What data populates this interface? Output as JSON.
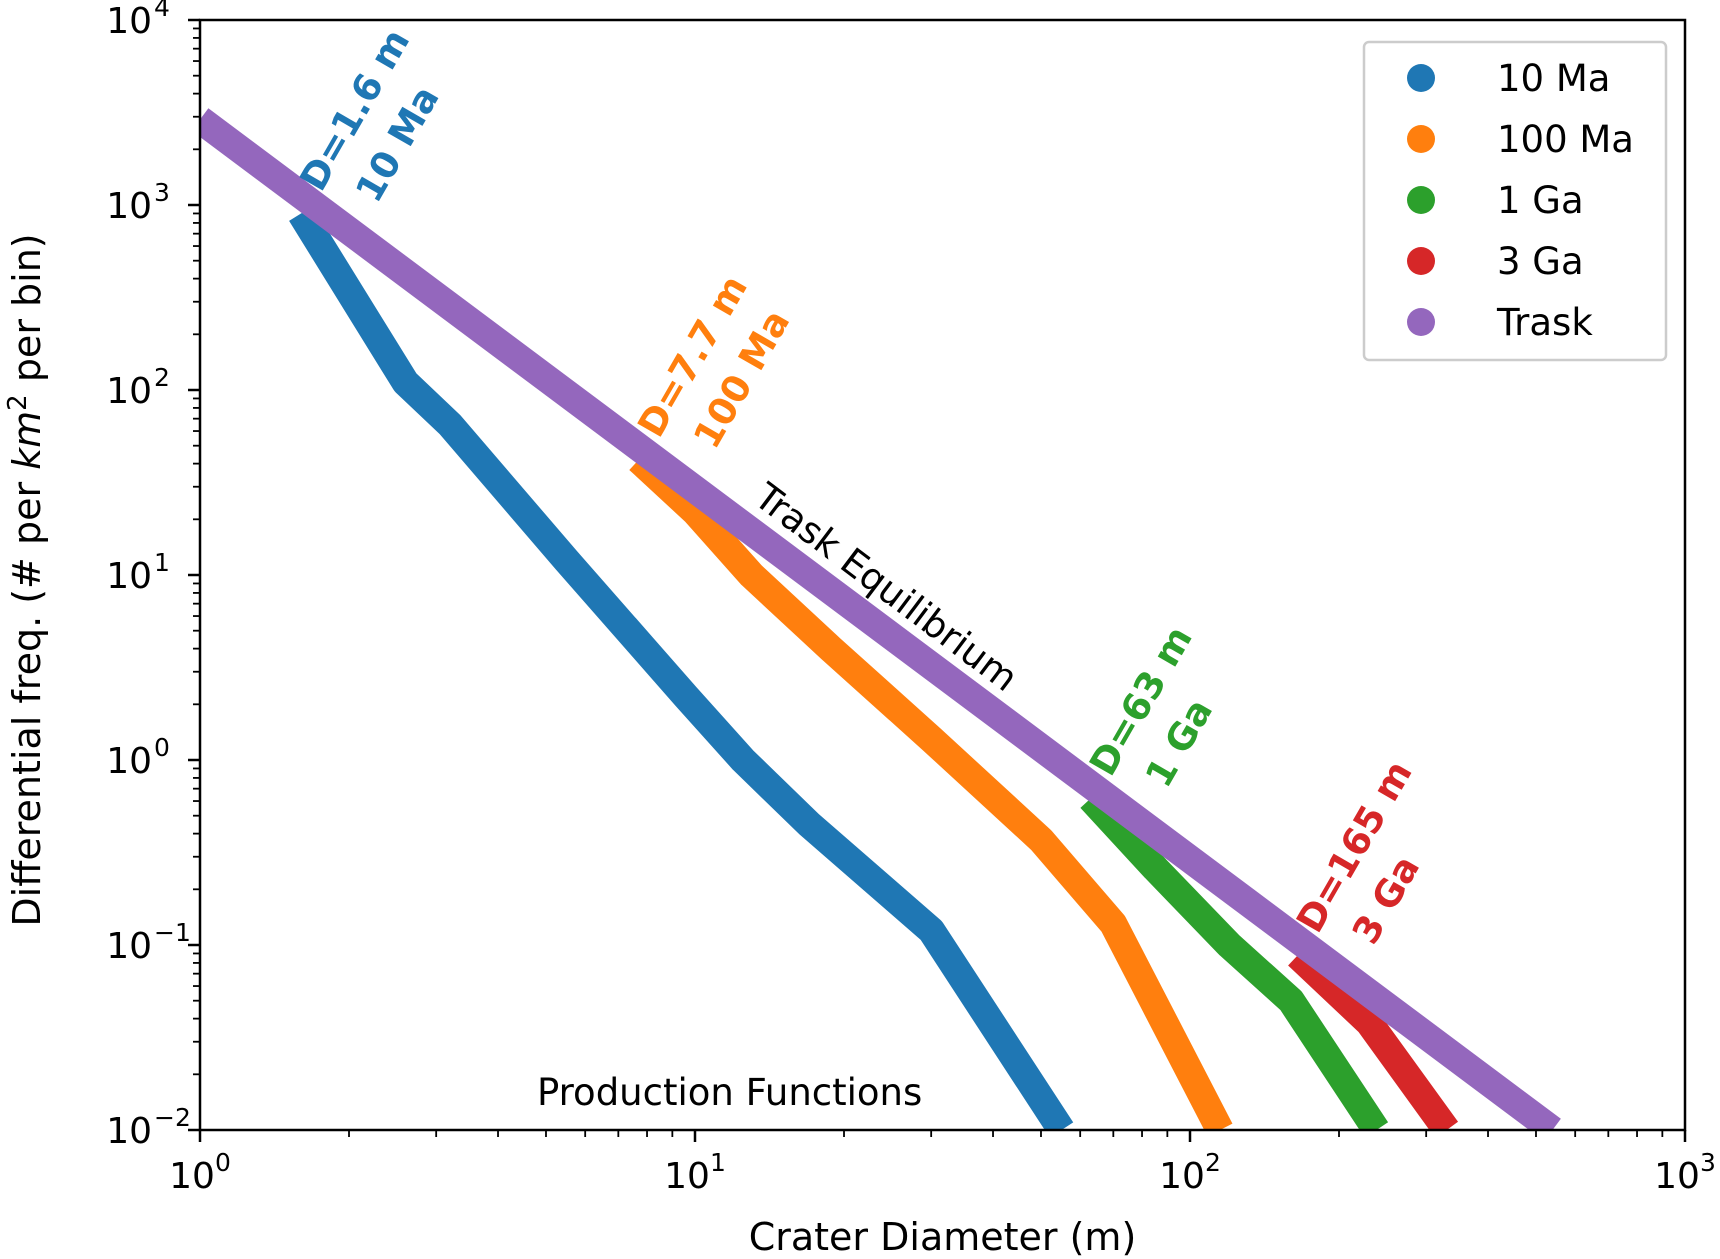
{
  "chart_data": {
    "type": "line",
    "xlabel": "Crater Diameter (m)",
    "ylabel": "Differential freq. (# per km² per bin)",
    "ylabel_parts": {
      "pre": "Differential freq. (# per ",
      "italic": "km",
      "sup": "2",
      "post": " per bin)"
    },
    "xscale": "log",
    "yscale": "log",
    "xlim": [
      1,
      1000
    ],
    "ylim": [
      0.01,
      10000
    ],
    "x_ticks": [
      {
        "value": 1,
        "base": "10",
        "exp": "0"
      },
      {
        "value": 10,
        "base": "10",
        "exp": "1"
      },
      {
        "value": 100,
        "base": "10",
        "exp": "2"
      },
      {
        "value": 1000,
        "base": "10",
        "exp": "3"
      }
    ],
    "y_ticks": [
      {
        "value": 0.01,
        "base": "10",
        "exp": "−2"
      },
      {
        "value": 0.1,
        "base": "10",
        "exp": "−1"
      },
      {
        "value": 1,
        "base": "10",
        "exp": "0"
      },
      {
        "value": 10,
        "base": "10",
        "exp": "1"
      },
      {
        "value": 100,
        "base": "10",
        "exp": "2"
      },
      {
        "value": 1000,
        "base": "10",
        "exp": "3"
      },
      {
        "value": 10000,
        "base": "10",
        "exp": "4"
      }
    ],
    "legend_position": "top-right",
    "grid": false,
    "series": [
      {
        "name": "10 Ma",
        "color": "#1f77b4",
        "points": [
          [
            1.6,
            900
          ],
          [
            2.6,
            110
          ],
          [
            3.2,
            65
          ],
          [
            5.5,
            12
          ],
          [
            9.6,
            2.2
          ],
          [
            12.5,
            1.0
          ],
          [
            17,
            0.45
          ],
          [
            30,
            0.12
          ],
          [
            55,
            0.01
          ]
        ]
      },
      {
        "name": "100 Ma",
        "color": "#ff7f0e",
        "points": [
          [
            7.7,
            42
          ],
          [
            10,
            22
          ],
          [
            13,
            10
          ],
          [
            18.8,
            4.0
          ],
          [
            30,
            1.3
          ],
          [
            50,
            0.37
          ],
          [
            70,
            0.13
          ],
          [
            115,
            0.01
          ]
        ]
      },
      {
        "name": "1 Ga",
        "color": "#2ca02c",
        "points": [
          [
            63,
            0.62
          ],
          [
            85,
            0.26
          ],
          [
            120,
            0.1
          ],
          [
            160,
            0.05
          ],
          [
            238,
            0.01
          ]
        ]
      },
      {
        "name": "3 Ga",
        "color": "#d62728",
        "points": [
          [
            165,
            0.088
          ],
          [
            230,
            0.038
          ],
          [
            330,
            0.01
          ]
        ]
      },
      {
        "name": "Trask",
        "color": "#9467bd",
        "points": [
          [
            1.0,
            2900
          ],
          [
            540,
            0.01
          ]
        ]
      }
    ],
    "annotations": [
      {
        "lines": [
          "D=1.6 m",
          "10 Ma"
        ],
        "color": "#1f77b4",
        "x": 1.6,
        "y": 900
      },
      {
        "lines": [
          "D=7.7 m",
          "100 Ma"
        ],
        "color": "#ff7f0e",
        "x": 7.7,
        "y": 42
      },
      {
        "lines": [
          "D=63 m",
          "1 Ga"
        ],
        "color": "#2ca02c",
        "x": 63,
        "y": 0.62
      },
      {
        "lines": [
          "D=165 m",
          "3 Ga"
        ],
        "color": "#d62728",
        "x": 165,
        "y": 0.088
      }
    ],
    "text_labels": {
      "trask": "Trask Equilibrium",
      "production": "Production Functions"
    }
  }
}
